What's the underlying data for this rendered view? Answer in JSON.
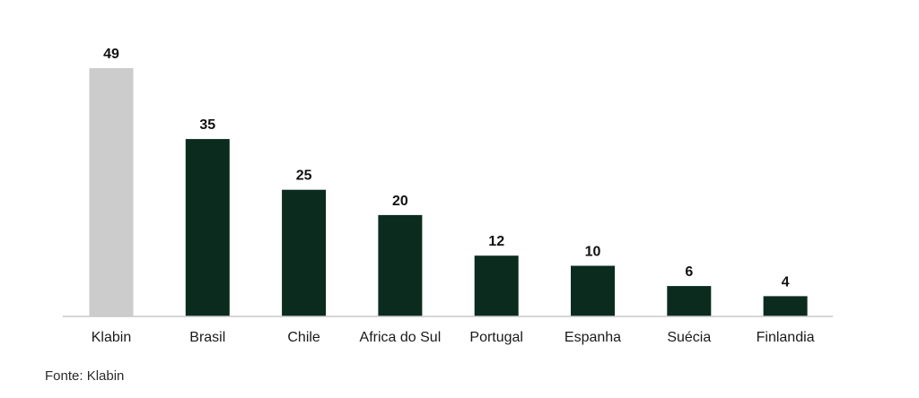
{
  "chart_data": {
    "type": "bar",
    "categories": [
      "Klabin",
      "Brasil",
      "Chile",
      "Africa do Sul",
      "Portugal",
      "Espanha",
      "Suécia",
      "Finlandia"
    ],
    "values": [
      49,
      35,
      25,
      20,
      12,
      10,
      6,
      4
    ],
    "colors": [
      "#cccccc",
      "#0b2b1f",
      "#0b2b1f",
      "#0b2b1f",
      "#0b2b1f",
      "#0b2b1f",
      "#0b2b1f",
      "#0b2b1f"
    ],
    "value_labels": [
      "49",
      "35",
      "25",
      "20",
      "12",
      "10",
      "6",
      "4"
    ],
    "title": "",
    "xlabel": "",
    "ylabel": "",
    "ylim": [
      0,
      49
    ],
    "grid": false,
    "legend": "none"
  },
  "footer": {
    "source": "Fonte:  Klabin"
  }
}
